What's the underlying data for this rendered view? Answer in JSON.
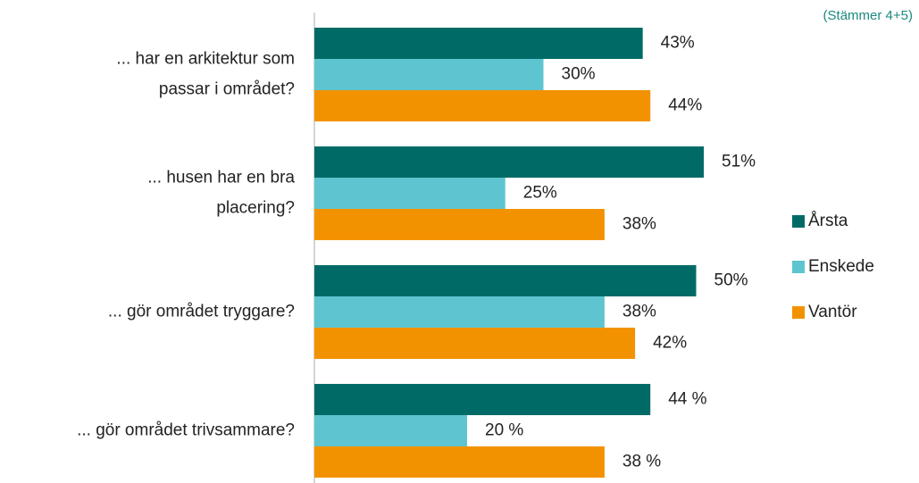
{
  "chart_data": {
    "type": "hbar",
    "annotation": "(Stämmer 4+5)",
    "categories": [
      [
        "... har en arkitektur som",
        "passar i området?"
      ],
      [
        "... husen har en bra",
        "placering?"
      ],
      [
        "... gör området tryggare?"
      ],
      [
        "... gör området trivsammare?"
      ]
    ],
    "series": [
      {
        "name": "Årsta",
        "color": "#006b66",
        "values": [
          43,
          51,
          50,
          44
        ],
        "value_labels": [
          "43%",
          "51%",
          "50%",
          "44 %"
        ]
      },
      {
        "name": "Enskede",
        "color": "#5ec5d0",
        "values": [
          30,
          25,
          38,
          20
        ],
        "value_labels": [
          "30%",
          "25%",
          "38%",
          "20 %"
        ]
      },
      {
        "name": "Vantör",
        "color": "#f39200",
        "values": [
          44,
          38,
          42,
          38
        ],
        "value_labels": [
          "44%",
          "38%",
          "42%",
          "38 %"
        ]
      }
    ],
    "xlim": [
      0,
      100
    ],
    "legend": "right"
  }
}
